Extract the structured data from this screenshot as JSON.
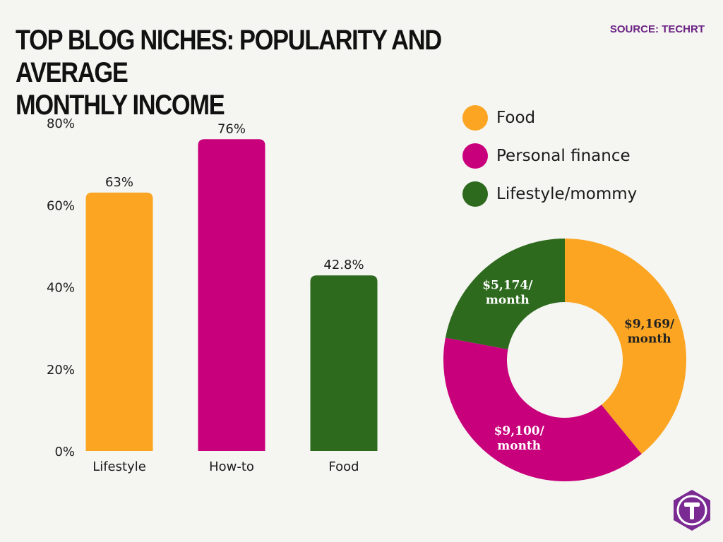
{
  "header": {
    "title_line1": "TOP BLOG NICHES: POPULARITY AND AVERAGE",
    "title_line2": "MONTHLY INCOME",
    "source": "SOURCE: TECHRT"
  },
  "colors": {
    "orange": "#fba522",
    "magenta": "#c9007c",
    "green": "#2e6a1d",
    "title": "#111111",
    "source": "#6b2383",
    "logo": "#7a2a92"
  },
  "logo_icon": "techrt-t-logo-icon",
  "chart_data": [
    {
      "type": "bar",
      "categories": [
        "Lifestyle",
        "How-to",
        "Food"
      ],
      "values": [
        63,
        76,
        42.8
      ],
      "value_labels": [
        "63%",
        "76%",
        "42.8%"
      ],
      "bar_colors": [
        "#fba522",
        "#c9007c",
        "#2e6a1d"
      ],
      "ylim": [
        0,
        80
      ],
      "yticks": [
        0,
        20,
        40,
        60,
        80
      ],
      "ytick_labels": [
        "0%",
        "20%",
        "40%",
        "60%",
        "80%"
      ],
      "grid": false
    },
    {
      "type": "pie",
      "donut": true,
      "legend_position": "top",
      "slices": [
        {
          "name": "Food",
          "value": 9169,
          "label_line1": "$9,169/",
          "label_line2": "month",
          "color": "#fba522",
          "label_color": "#222222"
        },
        {
          "name": "Personal finance",
          "value": 9100,
          "label_line1": "$9,100/",
          "label_line2": "month",
          "color": "#c9007c",
          "label_color": "#ffffff"
        },
        {
          "name": "Lifestyle/mommy",
          "value": 5174,
          "label_line1": "$5,174/",
          "label_line2": "month",
          "color": "#2e6a1d",
          "label_color": "#ffffff"
        }
      ]
    }
  ]
}
